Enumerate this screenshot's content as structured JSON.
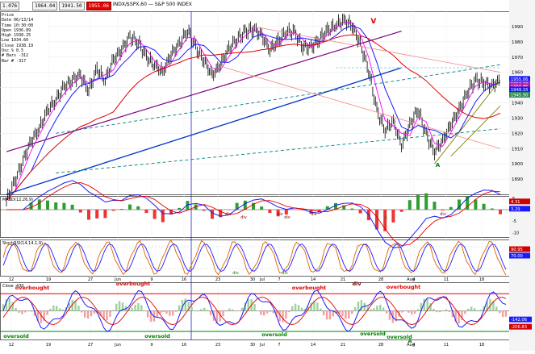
{
  "window": {
    "title": "INDX/$SPX,60 — S&P 500 INDEX",
    "toolbar": [
      "1.076",
      "1964.04",
      "1941.50",
      "1955.06"
    ]
  },
  "info_panel": [
    "Price",
    "Date 06/13/14",
    "Time 10:30:00",
    "Open 1936.89",
    "High 1938.25",
    "Low 1934.60",
    "Close 1938.19",
    "Osc % 0.5",
    "# Bars -312",
    "Bar # -317"
  ],
  "chart_data": [
    {
      "type": "line",
      "panel": "price",
      "title": "INDX/$SPX,60 — S&P 500 INDEX",
      "ylim": [
        1880,
        2000
      ],
      "y_ticks": [
        1890,
        1900,
        1910,
        1920,
        1930,
        1940,
        1950,
        1960,
        1970,
        1980,
        1990
      ],
      "price_labels": [
        {
          "value": "1955.06",
          "color": "#1a1aff"
        },
        {
          "value": "1952.20",
          "color": "#8a2be2"
        },
        {
          "value": "1950.86",
          "color": "#c71585"
        },
        {
          "value": "1949.15",
          "color": "#1a1aff"
        },
        {
          "value": "1945.90",
          "color": "#2e8b57"
        }
      ],
      "series": [
        {
          "values": [
            1876,
            1888,
            1902,
            1915,
            1923,
            1935,
            1942,
            1950,
            1955,
            1958,
            1948,
            1962,
            1955,
            1968,
            1975,
            1983,
            1980,
            1970,
            1965,
            1960,
            1972,
            1978,
            1988,
            1976,
            1968,
            1958,
            1965,
            1975,
            1982,
            1986,
            1989,
            1984,
            1975,
            1980,
            1987,
            1986,
            1977,
            1976,
            1982,
            1987,
            1991,
            1994,
            1991,
            1978,
            1962,
            1935,
            1922,
            1928,
            1912,
            1925,
            1936,
            1919,
            1908,
            1915,
            1926,
            1935,
            1947,
            1955,
            1953,
            1951,
            1955
          ]
        }
      ],
      "annotations": [
        "V",
        "A"
      ]
    },
    {
      "type": "line",
      "panel": "MACD(12,26,9)",
      "title": "MACD(12,26,9)",
      "ylim": [
        -12,
        6
      ],
      "y_ticks": [
        5,
        0,
        -5,
        -10
      ],
      "value_labels": [
        {
          "value": "4.31",
          "color": "#d00000"
        },
        {
          "value": "3.29",
          "color": "#1a1aff"
        }
      ],
      "annotations": [
        "div",
        "div",
        "div",
        "div",
        "div",
        "A",
        "div"
      ]
    },
    {
      "type": "line",
      "panel": "stochastic",
      "title": "StochRSI(14,14,1,9)",
      "value_labels": [
        {
          "value": "90.95",
          "color": "#d00000"
        },
        {
          "value": "70.00",
          "color": "#1a1aff"
        }
      ],
      "annotations": [
        "div",
        "div"
      ]
    },
    {
      "type": "line",
      "panel": "oscillator",
      "title": "Close -430",
      "value_labels": [
        {
          "value": "-142.06",
          "color": "#1a1aff"
        },
        {
          "value": "-206.83",
          "color": "#d00000"
        }
      ],
      "annotations": [
        "overbought",
        "overbought",
        "overbought",
        "overbought",
        "oversold",
        "oversold",
        "oversold",
        "oversold",
        "oversold",
        "A",
        "div"
      ]
    }
  ],
  "x_axis": {
    "labels": [
      "12",
      "19",
      "27",
      "Jun",
      "9",
      "16",
      "23",
      "30",
      "Jul",
      "7",
      "14",
      "21",
      "28",
      "4",
      "Aug",
      "11",
      "18"
    ]
  }
}
